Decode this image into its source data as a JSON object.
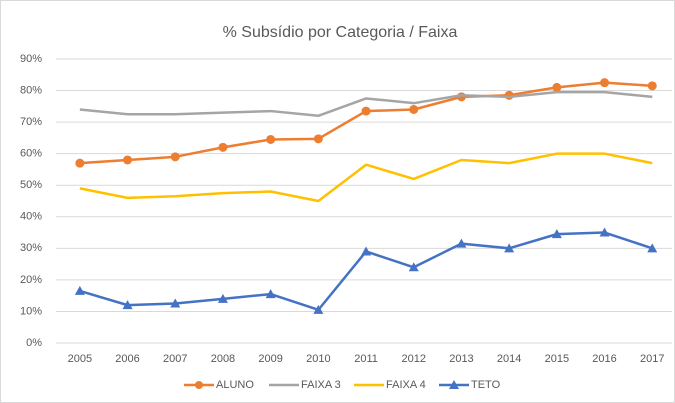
{
  "chart_data": {
    "type": "line",
    "title": "% Subsídio por Categoria / Faixa",
    "categories": [
      "2005",
      "2006",
      "2007",
      "2008",
      "2009",
      "2010",
      "2011",
      "2012",
      "2013",
      "2014",
      "2015",
      "2016",
      "2017"
    ],
    "series": [
      {
        "name": "ALUNO",
        "color": "#ED7D31",
        "marker": "circle",
        "values": [
          57,
          58,
          59,
          62,
          64.5,
          64.7,
          73.5,
          74,
          78,
          78.5,
          81,
          82.5,
          81.5
        ]
      },
      {
        "name": "FAIXA 3",
        "color": "#A5A5A5",
        "marker": "none",
        "values": [
          74,
          72.5,
          72.5,
          73,
          73.5,
          72,
          77.5,
          76,
          78.5,
          78,
          79.5,
          79.5,
          78
        ]
      },
      {
        "name": "FAIXA 4",
        "color": "#FFC000",
        "marker": "none",
        "values": [
          49,
          46,
          46.5,
          47.5,
          48,
          45,
          56.5,
          52,
          58,
          57,
          60,
          60,
          57
        ]
      },
      {
        "name": "TETO",
        "color": "#4472C4",
        "marker": "triangle",
        "values": [
          16.5,
          12,
          12.5,
          14,
          15.5,
          10.5,
          29,
          24,
          31.5,
          30,
          34.5,
          35,
          30
        ]
      }
    ],
    "ylim": [
      0,
      90
    ],
    "yticks": [
      {
        "value": 0,
        "label": "0%"
      },
      {
        "value": 10,
        "label": "10%"
      },
      {
        "value": 20,
        "label": "20%"
      },
      {
        "value": 30,
        "label": "30%"
      },
      {
        "value": 40,
        "label": "40%"
      },
      {
        "value": 50,
        "label": "50%"
      },
      {
        "value": 60,
        "label": "60%"
      },
      {
        "value": 70,
        "label": "70%"
      },
      {
        "value": 80,
        "label": "80%"
      },
      {
        "value": 90,
        "label": "90%"
      }
    ],
    "grid": true,
    "legend": "bottom"
  }
}
